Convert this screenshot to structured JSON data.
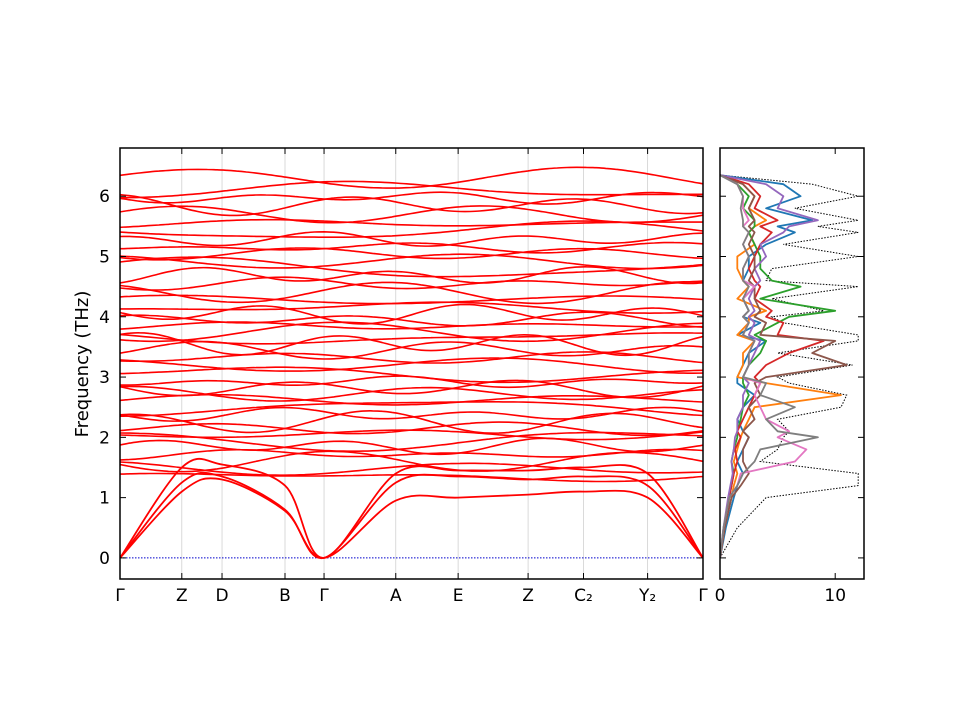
{
  "chart_data": [
    {
      "type": "line",
      "title": "",
      "xlabel": "",
      "ylabel": "Frequency (THz)",
      "ylim": [
        -0.35,
        6.8
      ],
      "yticks": [
        0,
        1,
        2,
        3,
        4,
        5,
        6
      ],
      "high_symmetry_points": [
        "Γ",
        "Z",
        "D",
        "B",
        "Γ",
        "A",
        "E",
        "Z",
        "C₂",
        "Y₂",
        "Γ"
      ],
      "high_symmetry_positions": [
        0.0,
        0.106,
        0.175,
        0.283,
        0.35,
        0.473,
        0.58,
        0.7,
        0.795,
        0.905,
        1.0
      ],
      "path_breaks": [
        0.35
      ],
      "zero_line": {
        "y": 0,
        "style": "dotted",
        "color": "#0000cc"
      },
      "band_color": "#ff0000",
      "acoustic_branches": {
        "x": [
          0.0,
          0.106,
          0.175,
          0.283,
          0.35,
          0.473,
          0.58,
          0.7,
          0.795,
          0.905,
          1.0
        ],
        "series": [
          {
            "values": [
              0.0,
              1.1,
              1.3,
              0.78,
              0.0,
              0.95,
              1.0,
              1.05,
              1.1,
              1.0,
              0.0
            ]
          },
          {
            "values": [
              0.0,
              1.25,
              1.35,
              0.8,
              0.0,
              1.25,
              1.35,
              1.3,
              1.35,
              1.2,
              0.0
            ]
          },
          {
            "values": [
              0.0,
              1.5,
              1.55,
              1.2,
              0.0,
              1.4,
              1.45,
              1.45,
              1.5,
              1.4,
              0.0
            ]
          }
        ]
      },
      "optical_band_centers": [
        1.35,
        1.48,
        1.6,
        1.72,
        1.85,
        1.95,
        2.05,
        2.15,
        2.25,
        2.38,
        2.5,
        2.62,
        2.72,
        2.82,
        2.92,
        3.05,
        3.2,
        3.32,
        3.45,
        3.55,
        3.65,
        3.75,
        3.85,
        3.95,
        4.05,
        4.15,
        4.28,
        4.4,
        4.55,
        4.68,
        4.8,
        4.92,
        5.05,
        5.15,
        5.28,
        5.42,
        5.55,
        5.7,
        5.85,
        5.98,
        6.1,
        6.3
      ]
    },
    {
      "type": "line",
      "title": "",
      "xlabel": "",
      "ylabel": "",
      "xlim": [
        0,
        12.5
      ],
      "xticks": [
        0,
        10
      ],
      "ylim": [
        -0.35,
        6.8
      ],
      "orientation": "horizontal",
      "y": [
        0.0,
        0.5,
        1.0,
        1.2,
        1.4,
        1.6,
        1.8,
        2.0,
        2.1,
        2.3,
        2.5,
        2.7,
        2.9,
        3.0,
        3.2,
        3.4,
        3.6,
        3.7,
        3.9,
        4.0,
        4.1,
        4.3,
        4.5,
        4.6,
        4.8,
        5.0,
        5.2,
        5.4,
        5.5,
        5.6,
        5.8,
        6.0,
        6.2,
        6.35
      ],
      "total_dos": {
        "style": "dotted",
        "color": "#000000",
        "values": [
          0.0,
          1.5,
          4.0,
          12.0,
          12.0,
          3.5,
          5.0,
          5.5,
          6.0,
          5.0,
          10.5,
          11.0,
          6.0,
          5.0,
          11.5,
          5.0,
          12.0,
          12.0,
          5.5,
          4.5,
          9.0,
          4.5,
          12.0,
          4.0,
          4.5,
          12.0,
          5.5,
          12.0,
          8.5,
          12.0,
          6.5,
          12.0,
          8.0,
          0.0
        ]
      },
      "series": [
        {
          "color": "#1f77b4",
          "values": [
            0.0,
            0.5,
            1.2,
            1.5,
            2.0,
            1.5,
            2.0,
            2.5,
            2.0,
            1.5,
            2.0,
            3.0,
            1.5,
            1.5,
            2.0,
            2.5,
            4.0,
            1.5,
            3.5,
            2.0,
            2.5,
            2.0,
            3.0,
            2.0,
            2.5,
            2.5,
            4.0,
            6.5,
            5.0,
            8.0,
            4.0,
            7.0,
            5.5,
            0.0
          ]
        },
        {
          "color": "#ff7f0e",
          "values": [
            0.0,
            0.4,
            1.0,
            1.2,
            1.5,
            1.2,
            1.5,
            1.8,
            2.0,
            2.5,
            3.0,
            10.5,
            4.0,
            1.5,
            2.0,
            2.0,
            3.0,
            1.5,
            2.5,
            2.5,
            4.0,
            1.5,
            2.5,
            2.0,
            1.5,
            1.5,
            3.0,
            2.5,
            3.0,
            4.0,
            2.5,
            3.0,
            2.0,
            0.0
          ]
        },
        {
          "color": "#2ca02c",
          "values": [
            0.0,
            0.4,
            0.8,
            1.0,
            1.2,
            1.0,
            1.2,
            1.5,
            1.5,
            1.8,
            2.0,
            2.5,
            2.0,
            2.0,
            2.5,
            3.5,
            4.0,
            3.0,
            5.0,
            6.0,
            10.0,
            3.5,
            7.0,
            4.5,
            3.5,
            3.5,
            3.0,
            2.5,
            3.0,
            3.0,
            2.0,
            2.5,
            1.5,
            0.0
          ]
        },
        {
          "color": "#d62728",
          "values": [
            0.0,
            0.4,
            0.8,
            1.0,
            1.2,
            1.5,
            1.3,
            1.8,
            1.5,
            2.0,
            2.5,
            3.0,
            3.5,
            3.0,
            4.0,
            6.0,
            9.0,
            5.0,
            5.5,
            4.0,
            4.5,
            3.0,
            3.5,
            3.0,
            2.5,
            3.0,
            3.5,
            4.5,
            3.5,
            5.0,
            3.0,
            3.5,
            2.5,
            0.0
          ]
        },
        {
          "color": "#9467bd",
          "values": [
            0.0,
            0.3,
            0.7,
            0.9,
            1.1,
            1.0,
            1.2,
            1.3,
            1.5,
            1.5,
            2.0,
            2.0,
            2.5,
            2.0,
            2.5,
            3.0,
            3.5,
            2.5,
            3.0,
            2.5,
            3.0,
            2.5,
            3.0,
            3.5,
            3.0,
            4.0,
            3.5,
            5.5,
            6.0,
            8.5,
            5.0,
            5.5,
            4.0,
            0.0
          ]
        },
        {
          "color": "#8c564b",
          "values": [
            0.0,
            0.4,
            1.0,
            1.8,
            2.5,
            2.0,
            2.0,
            2.5,
            2.0,
            3.0,
            2.5,
            3.5,
            3.0,
            4.0,
            11.0,
            8.0,
            10.0,
            3.5,
            4.0,
            3.0,
            3.5,
            3.0,
            3.0,
            2.5,
            3.0,
            3.0,
            2.5,
            3.0,
            2.5,
            3.0,
            2.5,
            3.0,
            2.0,
            0.0
          ]
        },
        {
          "color": "#e377c2",
          "values": [
            0.0,
            0.3,
            0.8,
            1.5,
            1.8,
            6.5,
            7.5,
            5.0,
            6.0,
            4.0,
            3.5,
            3.0,
            3.5,
            2.0,
            2.5,
            2.5,
            3.0,
            2.0,
            2.5,
            2.0,
            2.5,
            2.0,
            3.0,
            2.0,
            2.0,
            2.5,
            2.0,
            2.5,
            2.0,
            2.5,
            2.0,
            2.0,
            1.5,
            0.0
          ]
        },
        {
          "color": "#7f7f7f",
          "values": [
            0.0,
            0.3,
            0.8,
            1.5,
            2.0,
            3.0,
            3.5,
            8.5,
            5.0,
            4.0,
            6.5,
            3.5,
            4.0,
            2.0,
            2.5,
            2.5,
            3.0,
            2.0,
            2.5,
            2.0,
            2.5,
            2.0,
            2.5,
            2.0,
            2.0,
            2.5,
            2.0,
            2.5,
            2.0,
            2.0,
            1.8,
            2.0,
            1.5,
            0.0
          ]
        }
      ]
    }
  ]
}
